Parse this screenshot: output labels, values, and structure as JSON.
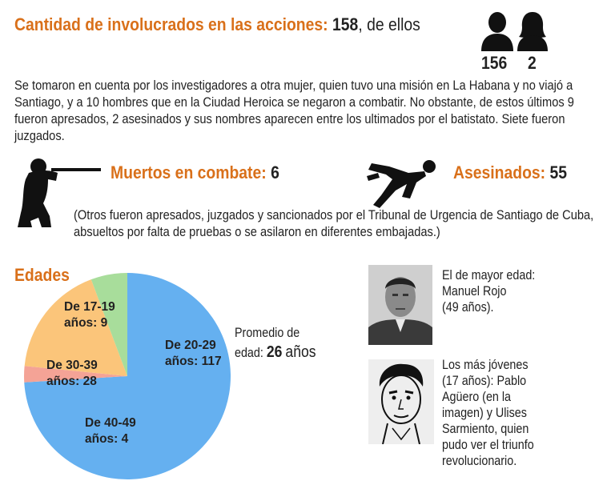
{
  "header": {
    "title": "Cantidad de involucrados en las acciones:",
    "total": "158",
    "suffix": ", de ellos",
    "male_count": "156",
    "female_count": "2"
  },
  "icons": {
    "male": "man-silhouette-icon",
    "female": "woman-silhouette-icon",
    "soldier": "rifleman-silhouette-icon",
    "fallen": "fallen-man-silhouette-icon"
  },
  "note1": "Se tomaron en cuenta por los investigadores a otra mujer, quien tuvo una misión en La Habana y no viajó a Santiago, y a 10 hombres que en la Ciudad Heroica se negaron a combatir. No obstante, de estos últimos 9 fueron apresados, 2 asesinados y sus nombres aparecen entre los ultimados por el batistato. Siete fueron juzgados.",
  "muertos": {
    "label": "Muertos en combate:",
    "value": "6"
  },
  "asesinados": {
    "label": "Asesinados:",
    "value": "55"
  },
  "note2": "(Otros fueron apresados, juzgados y sancionados por el Tribunal de Urgencia de Santiago de Cuba, absueltos por falta de pruebas o se asilaron en diferentes embajadas.)",
  "ages": {
    "title": "Edades",
    "average_label": "Promedio de",
    "average_label2": "edad:",
    "average_value": "26",
    "average_unit": "años"
  },
  "chart_data": {
    "type": "pie",
    "title": "Edades",
    "slices": [
      {
        "line1": "De 20-29",
        "line2": "años: 117",
        "value": 117,
        "color": "#65b0f0"
      },
      {
        "line1": "De 40-49",
        "line2": "años: 4",
        "value": 4,
        "color": "#f4a396"
      },
      {
        "line1": "De 30-39",
        "line2": "años: 28",
        "value": 28,
        "color": "#fbc57a"
      },
      {
        "line1": "De 17-19",
        "line2": "años: 9",
        "value": 9,
        "color": "#a8dd9b"
      }
    ]
  },
  "oldest": {
    "lines": [
      "El de mayor edad:",
      "Manuel Rojo",
      "(49 años)."
    ]
  },
  "youngest": {
    "lines": [
      "Los más jóvenes",
      "(17 años): Pablo",
      "Agüero (en la",
      "imagen) y Ulises",
      "Sarmiento, quien",
      "pudo ver el triunfo",
      "revolucionario."
    ]
  }
}
